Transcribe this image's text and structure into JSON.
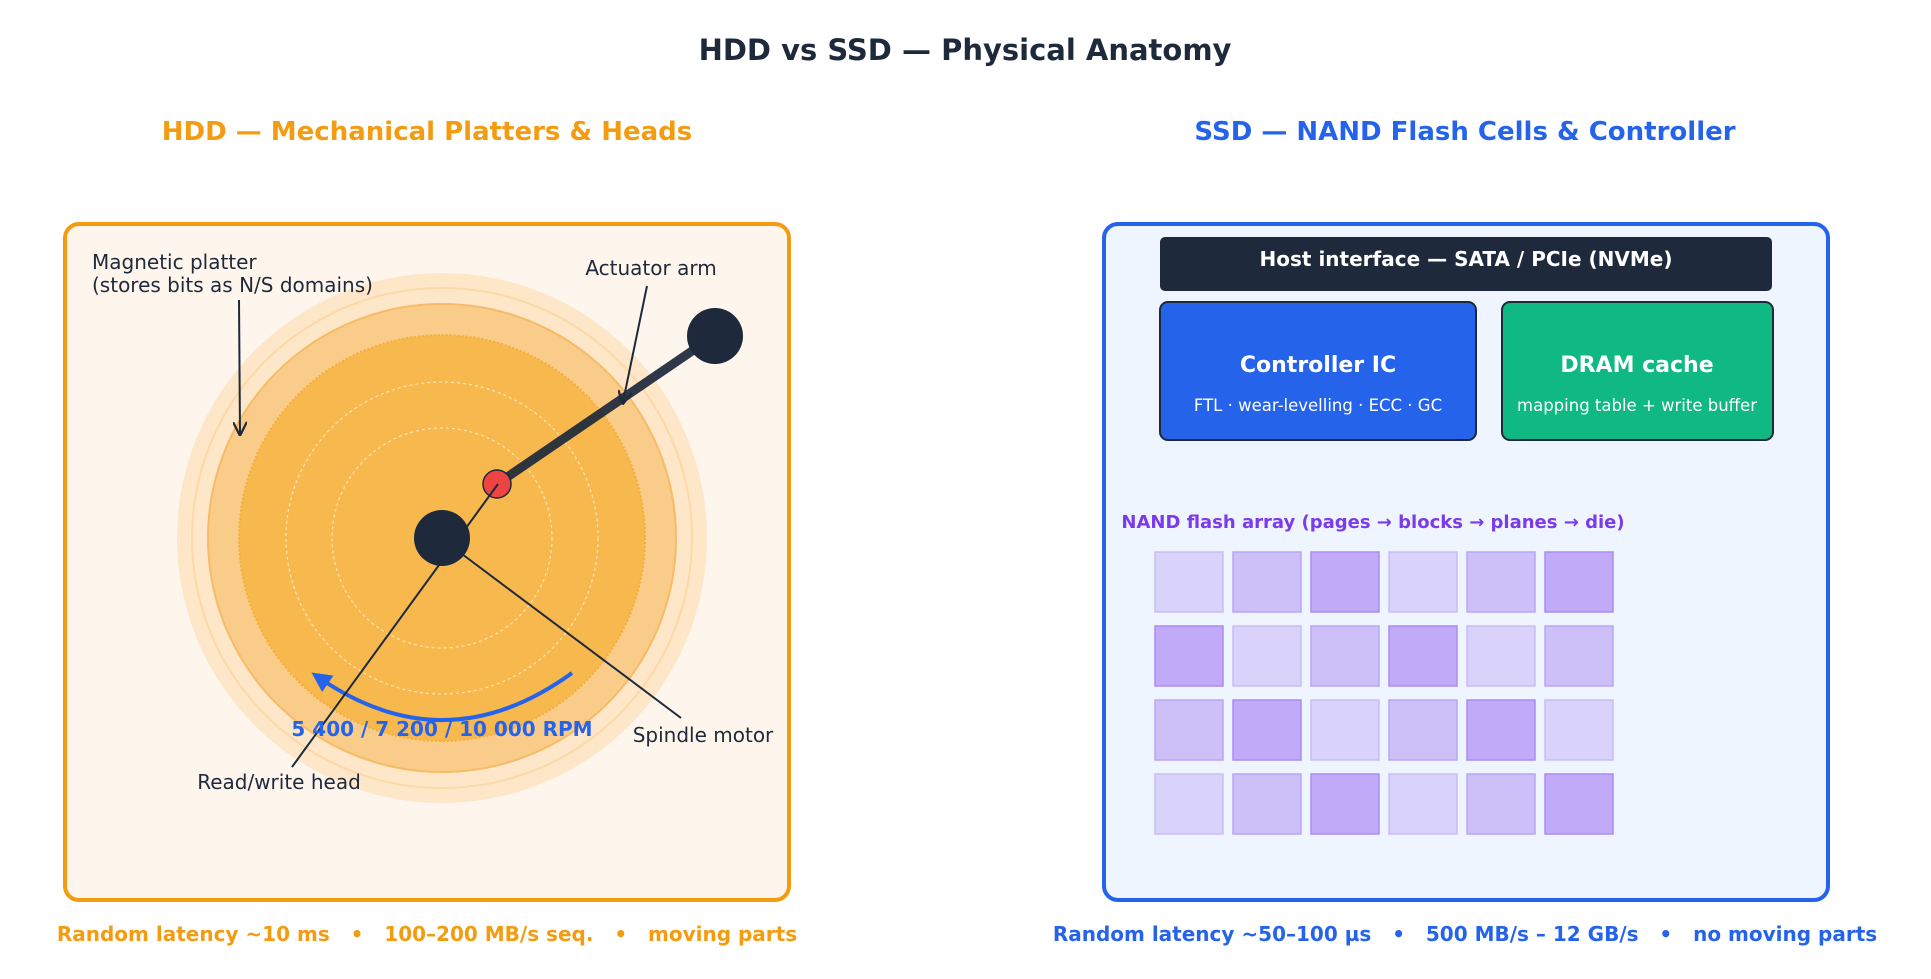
{
  "title": "HDD vs SSD — Physical Anatomy",
  "colors": {
    "hdd_accent": "#f39c12",
    "ssd_accent": "#2563eb",
    "dark": "#1e293b",
    "controller": "#2563eb",
    "dram": "#10b981",
    "nand_label": "#7c3aed",
    "head": "#ef4444"
  },
  "hdd": {
    "heading": "HDD — Mechanical Platters & Heads",
    "labels": {
      "platter_line1": "Magnetic platter",
      "platter_line2": "(stores bits as N/S domains)",
      "actuator": "Actuator arm",
      "rpm": "5 400 / 7 200 / 10 000 RPM",
      "spindle": "Spindle motor",
      "head": "Read/write head"
    },
    "footer": "Random latency ~10 ms   •   100–200 MB/s seq.   •   moving parts"
  },
  "ssd": {
    "heading": "SSD — NAND Flash Cells & Controller",
    "host": "Host interface — SATA / PCIe (NVMe)",
    "controller": {
      "title": "Controller IC",
      "subtitle": "FTL · wear-levelling · ECC · GC"
    },
    "dram": {
      "title": "DRAM cache",
      "subtitle": "mapping table + write buffer"
    },
    "nand_label": "NAND flash array (pages → blocks → planes → die)",
    "nand_shades": [
      [
        1,
        2,
        3,
        1,
        2,
        3
      ],
      [
        3,
        1,
        2,
        3,
        1,
        2
      ],
      [
        2,
        3,
        1,
        2,
        3,
        1
      ],
      [
        1,
        2,
        3,
        1,
        2,
        3
      ]
    ],
    "footer": "Random latency ~50–100 µs   •   500 MB/s – 12 GB/s   •   no moving parts"
  }
}
